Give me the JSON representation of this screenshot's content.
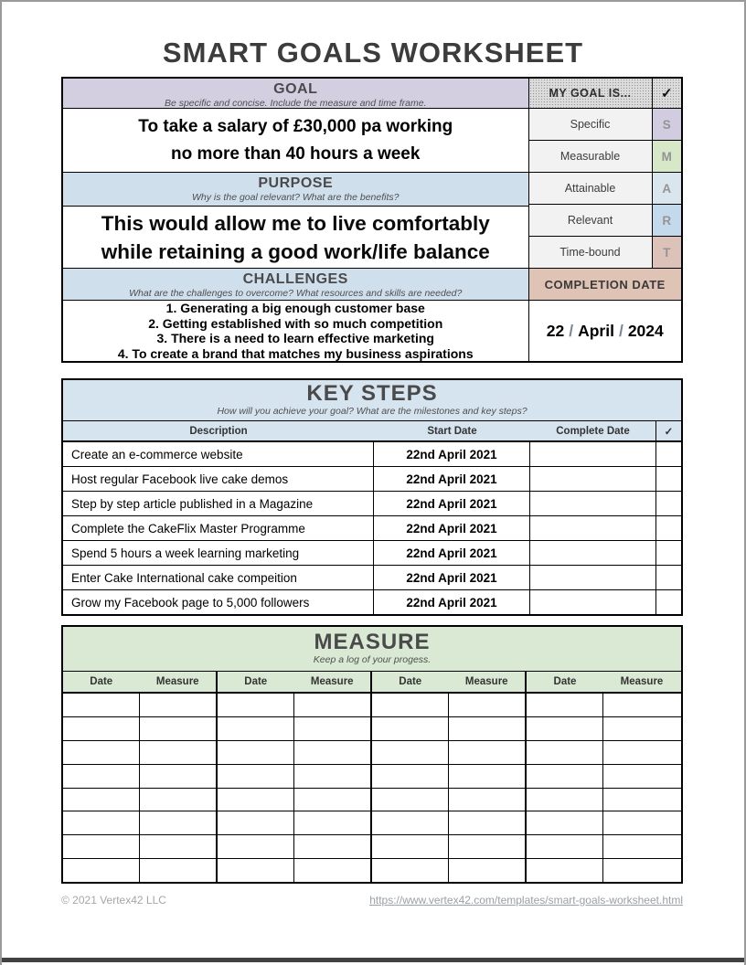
{
  "page": {
    "title": "SMART GOALS WORKSHEET",
    "footer": {
      "copyright": "© 2021 Vertex42 LLC",
      "link": "https://www.vertex42.com/templates/smart-goals-worksheet.html"
    }
  },
  "goal_section": {
    "header": "GOAL",
    "subtitle": "Be specific and concise. Include the measure and time frame.",
    "line1": "To take a salary of £30,000 pa working",
    "line2": "no more than 40 hours a week"
  },
  "purpose_section": {
    "header": "PURPOSE",
    "subtitle": "Why is the goal relevant? What are the benefits?",
    "line1": "This would allow me to live comfortably",
    "line2": "while retaining a good work/life balance"
  },
  "challenges_section": {
    "header": "CHALLENGES",
    "subtitle": "What are the challenges to overcome?  What resources and skills are needed?",
    "items": [
      "1. Generating a big enough customer base",
      "2. Getting established with so much competition",
      "3. There is a need to learn effective marketing",
      "4. To create a brand that matches my business aspirations"
    ]
  },
  "smart_checklist": {
    "header": "MY GOAL IS...",
    "check_symbol": "✓",
    "items": [
      {
        "label": "Specific",
        "letter": "S",
        "color": "#d2cce0"
      },
      {
        "label": "Measurable",
        "letter": "M",
        "color": "#d6e8c8"
      },
      {
        "label": "Attainable",
        "letter": "A",
        "color": "#d9e6ee"
      },
      {
        "label": "Relevant",
        "letter": "R",
        "color": "#c5d9ec"
      },
      {
        "label": "Time-bound",
        "letter": "T",
        "color": "#dcc2b8"
      }
    ]
  },
  "completion_date": {
    "header": "COMPLETION DATE",
    "day": "22",
    "separator": "/",
    "month": "April",
    "year": "2024"
  },
  "key_steps": {
    "header": "KEY STEPS",
    "subtitle": "How will you achieve your goal? What are the milestones and key steps?",
    "columns": {
      "description": "Description",
      "start": "Start Date",
      "complete": "Complete Date",
      "check": "✓"
    },
    "rows": [
      {
        "description": "Create an e-commerce website",
        "start_date": "22nd April 2021",
        "complete_date": "",
        "done": ""
      },
      {
        "description": "Host regular Facebook live cake demos",
        "start_date": "22nd April 2021",
        "complete_date": "",
        "done": ""
      },
      {
        "description": "Step by step article published in a Magazine",
        "start_date": "22nd April 2021",
        "complete_date": "",
        "done": ""
      },
      {
        "description": "Complete the CakeFlix Master Programme",
        "start_date": "22nd April 2021",
        "complete_date": "",
        "done": ""
      },
      {
        "description": "Spend 5 hours a week learning marketing",
        "start_date": "22nd April 2021",
        "complete_date": "",
        "done": ""
      },
      {
        "description": "Enter Cake International cake compeition",
        "start_date": "22nd April 2021",
        "complete_date": "",
        "done": ""
      },
      {
        "description": "Grow my Facebook page to 5,000 followers",
        "start_date": "22nd April 2021",
        "complete_date": "",
        "done": ""
      }
    ]
  },
  "measure": {
    "header": "MEASURE",
    "subtitle": "Keep a log of your progess.",
    "date_label": "Date",
    "measure_label": "Measure",
    "group_count": 4,
    "empty_row_count": 8
  },
  "colors": {
    "goal_header_bg": "#d3cfe1",
    "blue_header_bg": "#cfdfec",
    "keysteps_header_bg": "#d5e4ef",
    "measure_header_bg": "#d9e9d3",
    "completion_header_bg": "#dfc3b4",
    "mygoal_header_bg": "#dcdcdc",
    "smart_label_bg": "#f2f2f2",
    "date_separator": "#74879c",
    "page_border": "#9a9a9a"
  }
}
